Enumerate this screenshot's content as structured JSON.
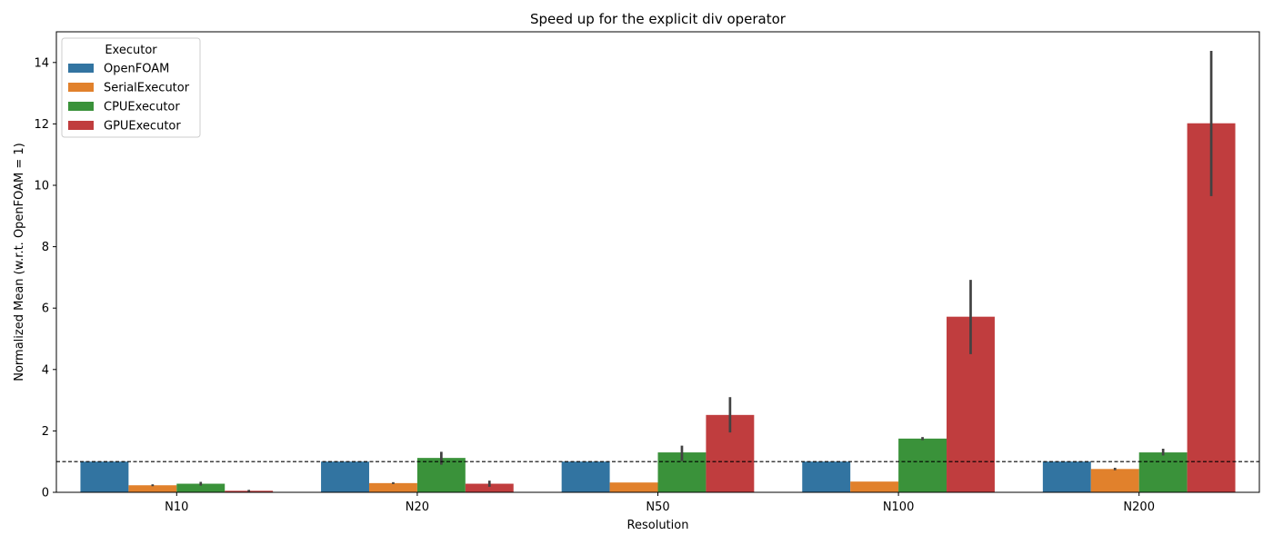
{
  "chart_data": {
    "type": "bar",
    "title": "Speed up for the explicit div operator",
    "xlabel": "Resolution",
    "ylabel": "Normalized Mean (w.r.t. OpenFOAM = 1)",
    "categories": [
      "N10",
      "N20",
      "N50",
      "N100",
      "N200"
    ],
    "ylim": [
      0,
      15
    ],
    "yticks": [
      0,
      2,
      4,
      6,
      8,
      10,
      12,
      14
    ],
    "reference_line": 1,
    "legend_title": "Executor",
    "legend_position": "top-left",
    "grid": false,
    "series": [
      {
        "name": "OpenFOAM",
        "color": "#3274a1",
        "values": [
          1.0,
          1.0,
          1.0,
          1.0,
          1.0
        ],
        "ci": [
          null,
          null,
          null,
          null,
          null
        ]
      },
      {
        "name": "SerialExecutor",
        "color": "#e1812c",
        "values": [
          0.23,
          0.3,
          0.32,
          0.35,
          0.76
        ],
        "ci": [
          [
            0.2,
            0.26
          ],
          [
            0.27,
            0.33
          ],
          null,
          null,
          [
            0.72,
            0.8
          ]
        ]
      },
      {
        "name": "CPUExecutor",
        "color": "#3a923a",
        "values": [
          0.28,
          1.12,
          1.3,
          1.75,
          1.3
        ],
        "ci": [
          [
            0.22,
            0.34
          ],
          [
            0.9,
            1.32
          ],
          [
            1.02,
            1.52
          ],
          [
            1.7,
            1.8
          ],
          [
            1.2,
            1.42
          ]
        ]
      },
      {
        "name": "GPUExecutor",
        "color": "#c03d3e",
        "values": [
          0.05,
          0.28,
          2.52,
          5.72,
          12.02
        ],
        "ci": [
          [
            0.02,
            0.08
          ],
          [
            0.18,
            0.38
          ],
          [
            1.95,
            3.1
          ],
          [
            4.5,
            6.92
          ],
          [
            9.65,
            14.38
          ]
        ]
      }
    ]
  }
}
